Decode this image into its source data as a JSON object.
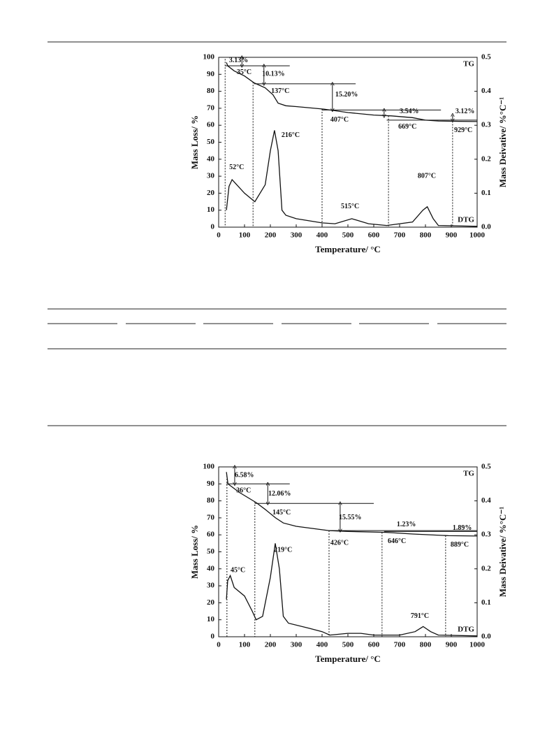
{
  "chart_data": [
    {
      "type": "line",
      "xlabel": "Temperature/ °C",
      "ylabel": "Mass Loss/ %",
      "y2label": "Mass Deivative/ %°C⁻¹",
      "xlim": [
        0,
        1000
      ],
      "xticks": [
        0,
        100,
        200,
        300,
        400,
        500,
        600,
        700,
        800,
        900,
        1000
      ],
      "ylim": [
        0,
        100
      ],
      "yticks": [
        0,
        10,
        20,
        30,
        40,
        50,
        60,
        70,
        80,
        90,
        100
      ],
      "y2lim": [
        0,
        0.5
      ],
      "y2ticks": [
        {
          "value": 0,
          "label": "0.0"
        },
        0.1,
        0.2,
        0.3,
        0.4,
        0.5
      ],
      "grid": false,
      "series": [
        {
          "name": "TG",
          "color": "#111111",
          "x": [
            30,
            35,
            60,
            100,
            137,
            180,
            210,
            230,
            260,
            300,
            407,
            500,
            600,
            669,
            750,
            800,
            850,
            929,
            1000
          ],
          "values": [
            97,
            95,
            92,
            89,
            85,
            82,
            78,
            73,
            71.5,
            71,
            69.5,
            67.5,
            66,
            65.5,
            64.5,
            63,
            62.5,
            62.3,
            62.2
          ]
        },
        {
          "name": "DTG",
          "color": "#111111",
          "axis": "y2",
          "x": [
            30,
            40,
            52,
            100,
            140,
            180,
            200,
            216,
            230,
            245,
            260,
            300,
            400,
            450,
            515,
            580,
            650,
            750,
            790,
            807,
            830,
            850,
            1000
          ],
          "values": [
            0.05,
            0.12,
            0.14,
            0.1,
            0.075,
            0.125,
            0.225,
            0.285,
            0.225,
            0.05,
            0.035,
            0.025,
            0.0125,
            0.01,
            0.025,
            0.01,
            0.005,
            0.015,
            0.05,
            0.06,
            0.025,
            0.005,
            0.0025
          ]
        }
      ],
      "annotations": [
        "3.13%",
        "35°C",
        "10.13%",
        "137°C",
        "15.20%",
        "407°C",
        "3.54%",
        "669°C",
        "3.12%",
        "929°C",
        "52°C",
        "216°C",
        "515°C",
        "807°C"
      ]
    },
    {
      "type": "line",
      "xlabel": "Temperature/ °C",
      "ylabel": "Mass Loss/ %",
      "y2label": "Mass Deivative/ %°C⁻¹",
      "xlim": [
        0,
        1000
      ],
      "xticks": [
        0,
        100,
        200,
        300,
        400,
        500,
        600,
        700,
        800,
        900,
        1000
      ],
      "ylim": [
        0,
        100
      ],
      "yticks": [
        0,
        10,
        20,
        30,
        40,
        50,
        60,
        70,
        80,
        90,
        100
      ],
      "y2lim": [
        0,
        0.5
      ],
      "y2ticks": [
        {
          "value": 0,
          "label": "0.0"
        },
        0.1,
        0.2,
        0.3,
        0.4,
        0.5
      ],
      "grid": false,
      "series": [
        {
          "name": "TG",
          "color": "#111111",
          "x": [
            30,
            36,
            80,
            145,
            180,
            220,
            250,
            300,
            426,
            500,
            646,
            750,
            889,
            1000
          ],
          "values": [
            97,
            90,
            85,
            79,
            75,
            70,
            67,
            65,
            62.5,
            62,
            61.5,
            60.5,
            59.5,
            59.3
          ]
        },
        {
          "name": "DTG",
          "color": "#111111",
          "axis": "y2",
          "x": [
            30,
            35,
            45,
            60,
            100,
            130,
            145,
            170,
            200,
            219,
            235,
            250,
            270,
            350,
            400,
            430,
            500,
            550,
            600,
            700,
            760,
            791,
            820,
            850,
            1000
          ],
          "values": [
            0.11,
            0.165,
            0.18,
            0.145,
            0.12,
            0.075,
            0.05,
            0.06,
            0.175,
            0.275,
            0.2,
            0.06,
            0.04,
            0.025,
            0.015,
            0.005,
            0.01,
            0.01,
            0.005,
            0.005,
            0.015,
            0.03,
            0.015,
            0.005,
            0.0025
          ]
        }
      ],
      "annotations": [
        "6.58%",
        "36°C",
        "12.06%",
        "145°C",
        "15.55%",
        "426°C",
        "1.23%",
        "646°C",
        "1.89%",
        "889°C",
        "45°C",
        "219°C",
        "791°C"
      ]
    }
  ]
}
